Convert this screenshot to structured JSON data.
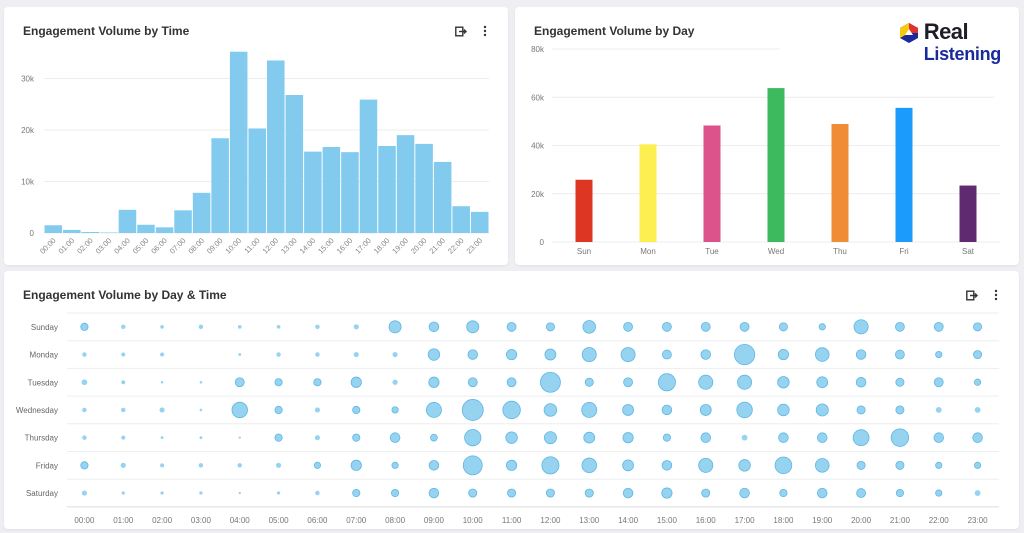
{
  "brand": {
    "line1": "Real",
    "line2": "Listening",
    "icon": "real-listening-logo-icon",
    "colors": {
      "red": "#e2302a",
      "yellow": "#f6c90e",
      "blue": "#1a2a9e",
      "text": "#1e1e28"
    }
  },
  "panels": {
    "time": {
      "title": "Engagement Volume by Time",
      "export_icon": "export-icon",
      "menu_icon": "more-vertical-icon"
    },
    "day": {
      "title": "Engagement Volume by Day"
    },
    "heat": {
      "title": "Engagement Volume by Day & Time",
      "export_icon": "export-icon",
      "menu_icon": "more-vertical-icon"
    }
  },
  "chart_data": [
    {
      "id": "time",
      "type": "bar",
      "title": "Engagement Volume by Time",
      "xlabel": "",
      "ylabel": "",
      "categories": [
        "00:00",
        "01:00",
        "02:00",
        "03:00",
        "04:00",
        "05:00",
        "06:00",
        "07:00",
        "08:00",
        "09:00",
        "10:00",
        "11:00",
        "12:00",
        "13:00",
        "14:00",
        "15:00",
        "16:00",
        "17:00",
        "18:00",
        "19:00",
        "20:00",
        "21:00",
        "22:00",
        "23:00"
      ],
      "values": [
        1500,
        600,
        200,
        100,
        4500,
        1600,
        1100,
        4400,
        7800,
        18400,
        35200,
        20300,
        33500,
        26800,
        15800,
        16700,
        15700,
        25900,
        16900,
        19000,
        17300,
        13800,
        5200,
        4100
      ],
      "ylim": [
        0,
        40000
      ],
      "yticks": [
        0,
        10000,
        20000,
        30000
      ],
      "ytick_labels": [
        "0",
        "10k",
        "20k",
        "30k"
      ],
      "color": "#82cbef",
      "grid": true
    },
    {
      "id": "day",
      "type": "bar",
      "title": "Engagement Volume by Day",
      "xlabel": "",
      "ylabel": "",
      "categories": [
        "Sun",
        "Mon",
        "Tue",
        "Wed",
        "Thu",
        "Fri",
        "Sat"
      ],
      "values": [
        25800,
        40500,
        48300,
        63800,
        48900,
        55600,
        23400
      ],
      "colors": [
        "#dd3723",
        "#fdef52",
        "#db538a",
        "#3dba5d",
        "#f08b36",
        "#1b9cfc",
        "#5f2a70"
      ],
      "ylim": [
        0,
        80000
      ],
      "yticks": [
        0,
        20000,
        40000,
        60000,
        80000
      ],
      "ytick_labels": [
        "0",
        "20k",
        "40k",
        "60k",
        "80k"
      ],
      "grid": true
    },
    {
      "id": "heat",
      "type": "scatter",
      "subtype": "bubble-matrix",
      "title": "Engagement Volume by Day & Time",
      "rows": [
        "Sunday",
        "Monday",
        "Tuesday",
        "Wednesday",
        "Thursday",
        "Friday",
        "Saturday"
      ],
      "columns": [
        "00:00",
        "01:00",
        "02:00",
        "03:00",
        "04:00",
        "05:00",
        "06:00",
        "07:00",
        "08:00",
        "09:00",
        "10:00",
        "11:00",
        "12:00",
        "13:00",
        "14:00",
        "15:00",
        "16:00",
        "17:00",
        "18:00",
        "19:00",
        "20:00",
        "21:00",
        "22:00",
        "23:00"
      ],
      "values": [
        [
          400,
          150,
          100,
          150,
          100,
          100,
          150,
          200,
          1100,
          700,
          1100,
          600,
          500,
          1200,
          600,
          600,
          600,
          600,
          500,
          300,
          1500,
          600,
          600,
          500
        ],
        [
          150,
          120,
          120,
          0,
          60,
          150,
          150,
          200,
          200,
          1000,
          700,
          800,
          900,
          1500,
          1500,
          600,
          700,
          3100,
          800,
          1400,
          700,
          600,
          300,
          500
        ],
        [
          250,
          120,
          50,
          50,
          600,
          400,
          400,
          800,
          200,
          800,
          600,
          600,
          3000,
          500,
          600,
          2200,
          1500,
          1500,
          1000,
          900,
          700,
          500,
          600,
          300
        ],
        [
          150,
          150,
          200,
          50,
          1800,
          400,
          200,
          400,
          300,
          1700,
          3300,
          2300,
          1200,
          1700,
          900,
          700,
          900,
          1800,
          1000,
          1100,
          500,
          500,
          250,
          250
        ],
        [
          150,
          120,
          60,
          60,
          40,
          400,
          200,
          400,
          700,
          350,
          2000,
          1000,
          1100,
          900,
          800,
          400,
          700,
          250,
          700,
          700,
          1900,
          2300,
          700,
          700
        ],
        [
          400,
          200,
          120,
          150,
          150,
          200,
          300,
          800,
          300,
          700,
          2700,
          800,
          2200,
          1600,
          900,
          700,
          1500,
          1000,
          2100,
          1400,
          500,
          500,
          300,
          300
        ],
        [
          200,
          80,
          80,
          80,
          40,
          80,
          150,
          400,
          400,
          700,
          500,
          500,
          500,
          500,
          700,
          800,
          500,
          700,
          400,
          700,
          600,
          400,
          300,
          250
        ]
      ],
      "color": "#82cbef"
    }
  ]
}
